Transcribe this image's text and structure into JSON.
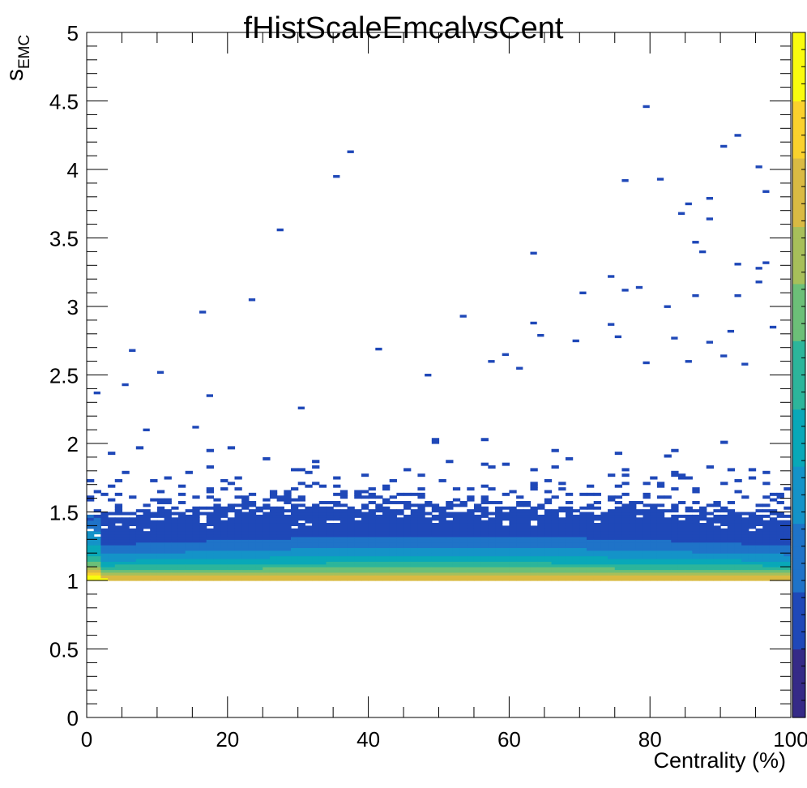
{
  "chart_data": {
    "type": "heatmap",
    "title": "fHistScaleEmcalvsCent",
    "xlabel": "Centrality (%)",
    "ylabel_main": "s",
    "ylabel_sub": "EMC",
    "xlim": [
      0,
      100
    ],
    "ylim": [
      0,
      5
    ],
    "x_ticks": [
      {
        "value": 0,
        "label": "0"
      },
      {
        "value": 20,
        "label": "20"
      },
      {
        "value": 40,
        "label": "40"
      },
      {
        "value": 60,
        "label": "60"
      },
      {
        "value": 80,
        "label": "80"
      },
      {
        "value": 100,
        "label": "100"
      }
    ],
    "y_ticks": [
      {
        "value": 0,
        "label": "0"
      },
      {
        "value": 0.5,
        "label": "0.5"
      },
      {
        "value": 1,
        "label": "1"
      },
      {
        "value": 1.5,
        "label": "1.5"
      },
      {
        "value": 2,
        "label": "2"
      },
      {
        "value": 2.5,
        "label": "2.5"
      },
      {
        "value": 3,
        "label": "3"
      },
      {
        "value": 3.5,
        "label": "3.5"
      },
      {
        "value": 4,
        "label": "4"
      },
      {
        "value": 4.5,
        "label": "4.5"
      },
      {
        "value": 5,
        "label": "5"
      }
    ],
    "color_palette": [
      "#352a87",
      "#1f48b8",
      "#1f73c8",
      "#1493c8",
      "#09a8b8",
      "#2cb59b",
      "#6cbf78",
      "#a7bf5a",
      "#d9ba43",
      "#f9d12d",
      "#f9fb0e"
    ],
    "grid": false,
    "density_profile": {
      "lower_edge": 1.0,
      "core_peak": [
        1.0,
        1.08
      ],
      "dense_upper_edge": [
        1.45,
        1.6
      ],
      "sparse_tail_max": 4.46
    },
    "outlier_cells": [
      {
        "x": 79.5,
        "y": 4.46
      },
      {
        "x": 92.5,
        "y": 4.25
      },
      {
        "x": 37.5,
        "y": 4.13
      },
      {
        "x": 35.5,
        "y": 3.95
      },
      {
        "x": 76.5,
        "y": 3.92
      },
      {
        "x": 81.5,
        "y": 3.93
      },
      {
        "x": 95.5,
        "y": 4.02
      },
      {
        "x": 90.5,
        "y": 4.17
      },
      {
        "x": 96.5,
        "y": 3.84
      },
      {
        "x": 88.5,
        "y": 3.79
      },
      {
        "x": 85.5,
        "y": 3.75
      },
      {
        "x": 84.5,
        "y": 3.68
      },
      {
        "x": 88.5,
        "y": 3.64
      },
      {
        "x": 27.5,
        "y": 3.56
      },
      {
        "x": 86.5,
        "y": 3.47
      },
      {
        "x": 87.5,
        "y": 3.4
      },
      {
        "x": 63.5,
        "y": 3.39
      },
      {
        "x": 96.5,
        "y": 3.32
      },
      {
        "x": 92.5,
        "y": 3.31
      },
      {
        "x": 95.5,
        "y": 3.28
      },
      {
        "x": 74.5,
        "y": 3.22
      },
      {
        "x": 95.5,
        "y": 3.18
      },
      {
        "x": 78.5,
        "y": 3.14
      },
      {
        "x": 76.5,
        "y": 3.12
      },
      {
        "x": 70.5,
        "y": 3.1
      },
      {
        "x": 86.5,
        "y": 3.08
      },
      {
        "x": 92.5,
        "y": 3.08
      },
      {
        "x": 23.5,
        "y": 3.05
      },
      {
        "x": 82.5,
        "y": 3.0
      },
      {
        "x": 16.5,
        "y": 2.96
      },
      {
        "x": 53.5,
        "y": 2.93
      },
      {
        "x": 63.5,
        "y": 2.88
      },
      {
        "x": 74.5,
        "y": 2.87
      },
      {
        "x": 97.5,
        "y": 2.85
      },
      {
        "x": 91.5,
        "y": 2.82
      },
      {
        "x": 64.5,
        "y": 2.79
      },
      {
        "x": 69.5,
        "y": 2.75
      },
      {
        "x": 75.5,
        "y": 2.78
      },
      {
        "x": 83.5,
        "y": 2.77
      },
      {
        "x": 88.5,
        "y": 2.74
      },
      {
        "x": 41.5,
        "y": 2.69
      },
      {
        "x": 6.5,
        "y": 2.68
      },
      {
        "x": 59.5,
        "y": 2.65
      },
      {
        "x": 90.5,
        "y": 2.64
      },
      {
        "x": 85.5,
        "y": 2.6
      },
      {
        "x": 93.5,
        "y": 2.58
      },
      {
        "x": 79.5,
        "y": 2.59
      },
      {
        "x": 10.5,
        "y": 2.52
      },
      {
        "x": 57.5,
        "y": 2.6
      },
      {
        "x": 61.5,
        "y": 2.55
      },
      {
        "x": 48.5,
        "y": 2.5
      },
      {
        "x": 1.5,
        "y": 2.37
      },
      {
        "x": 5.5,
        "y": 2.43
      },
      {
        "x": 17.5,
        "y": 2.35
      },
      {
        "x": 30.5,
        "y": 2.26
      },
      {
        "x": 8.5,
        "y": 2.1
      },
      {
        "x": 15.5,
        "y": 2.12
      }
    ]
  }
}
